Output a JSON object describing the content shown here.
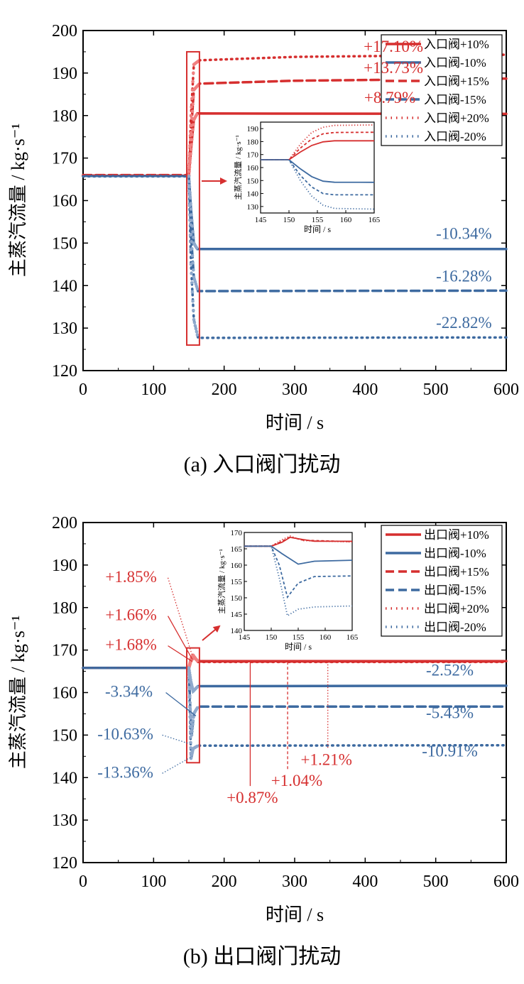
{
  "colors": {
    "red": "#d62f2f",
    "blue": "#3d6aa0",
    "red_light": "#f08080",
    "blue_light": "#8fa9cc"
  },
  "panel_a": {
    "caption": "(a) 入口阀门扰动",
    "ylabel": "主蒸汽流量 / kg·s⁻¹",
    "xlabel": "时间 / s",
    "annotations": [
      {
        "text": "+17.10%",
        "color": "red",
        "x": 440,
        "y": 195
      },
      {
        "text": "+13.73%",
        "color": "red",
        "x": 440,
        "y": 190
      },
      {
        "text": "+8.79%",
        "color": "red",
        "x": 435,
        "y": 183
      },
      {
        "text": "-10.34%",
        "color": "blue",
        "x": 540,
        "y": 151
      },
      {
        "text": "-16.28%",
        "color": "blue",
        "x": 540,
        "y": 141
      },
      {
        "text": "-22.82%",
        "color": "blue",
        "x": 540,
        "y": 130
      }
    ],
    "inset": {
      "ylabel": "主蒸汽流量 / kg·s⁻¹",
      "xlabel": "时间 / s"
    }
  },
  "panel_b": {
    "caption": "(b) 出口阀门扰动",
    "ylabel": "主蒸汽流量 / kg·s⁻¹",
    "xlabel": "时间 / s",
    "annotations": [
      {
        "text": "+1.85%",
        "color": "red",
        "x": 68,
        "y": 186,
        "ax": 155,
        "ay": 168.6
      },
      {
        "text": "+1.66%",
        "color": "red",
        "x": 68,
        "y": 177,
        "ax": 155,
        "ay": 167.8
      },
      {
        "text": "+1.68%",
        "color": "red",
        "x": 68,
        "y": 170,
        "ax": 155,
        "ay": 167.3
      },
      {
        "text": "-2.52%",
        "color": "blue",
        "x": 520,
        "y": 164,
        "ax": null,
        "ay": null
      },
      {
        "text": "-5.43%",
        "color": "blue",
        "x": 520,
        "y": 154,
        "ax": null,
        "ay": null
      },
      {
        "text": "-10.91%",
        "color": "blue",
        "x": 520,
        "y": 145,
        "ax": null,
        "ay": null
      },
      {
        "text": "-3.34%",
        "color": "blue",
        "x": 65,
        "y": 159,
        "ax": 160,
        "ay": 154.5
      },
      {
        "text": "-10.63%",
        "color": "blue",
        "x": 60,
        "y": 149,
        "ax": 150,
        "ay": 148
      },
      {
        "text": "-13.36%",
        "color": "blue",
        "x": 60,
        "y": 140,
        "ax": 155,
        "ay": 145
      },
      {
        "text": "+0.87%",
        "color": "red",
        "x": 240,
        "y": 134,
        "ax": 237,
        "ay": 167.5
      },
      {
        "text": "+1.04%",
        "color": "red",
        "x": 303,
        "y": 138,
        "ax": 290,
        "ay": 167.5
      },
      {
        "text": "+1.21%",
        "color": "red",
        "x": 345,
        "y": 143,
        "ax": 347,
        "ay": 167.5
      }
    ],
    "inset": {
      "ylabel": "主蒸汽流量 / kg·s⁻¹",
      "xlabel": "时间 / s"
    }
  },
  "chart_data": [
    {
      "type": "line",
      "xlabel": "时间 / s",
      "ylabel": "主蒸汽流量 / kg·s⁻¹",
      "xlim": [
        0,
        600
      ],
      "ylim": [
        120,
        200
      ],
      "xticks": [
        0,
        100,
        200,
        300,
        400,
        500,
        600
      ],
      "yticks": [
        120,
        130,
        140,
        150,
        160,
        170,
        180,
        190,
        200
      ],
      "legend_position": "top-right",
      "series": [
        {
          "name": "入口阀+10%",
          "color": "red",
          "style": "solid",
          "points": [
            [
              0,
              165.8
            ],
            [
              150,
              165.8
            ],
            [
              153,
              172
            ],
            [
              157,
              179
            ],
            [
              162,
              180.5
            ],
            [
              600,
              180.4
            ]
          ]
        },
        {
          "name": "入口阀-10%",
          "color": "blue",
          "style": "solid",
          "points": [
            [
              0,
              165.8
            ],
            [
              150,
              165.8
            ],
            [
              153,
              158
            ],
            [
              157,
              150
            ],
            [
              162,
              148.6
            ],
            [
              600,
              148.6
            ]
          ]
        },
        {
          "name": "入口阀+15%",
          "color": "red",
          "style": "dashed",
          "points": [
            [
              0,
              166.0
            ],
            [
              150,
              166.0
            ],
            [
              153,
              176
            ],
            [
              157,
              186
            ],
            [
              165,
              187.5
            ],
            [
              300,
              188.2
            ],
            [
              600,
              188.7
            ]
          ]
        },
        {
          "name": "入口阀-15%",
          "color": "blue",
          "style": "dashed",
          "points": [
            [
              0,
              165.8
            ],
            [
              150,
              165.8
            ],
            [
              153,
              152
            ],
            [
              157,
              142
            ],
            [
              163,
              138.7
            ],
            [
              600,
              138.8
            ]
          ]
        },
        {
          "name": "入口阀+20%",
          "color": "red",
          "style": "dotted",
          "points": [
            [
              0,
              165.9
            ],
            [
              150,
              165.9
            ],
            [
              153,
              180
            ],
            [
              157,
              192
            ],
            [
              165,
              193.0
            ],
            [
              300,
              193.8
            ],
            [
              600,
              194.3
            ]
          ]
        },
        {
          "name": "入口阀-20%",
          "color": "blue",
          "style": "dotted",
          "points": [
            [
              0,
              165.7
            ],
            [
              150,
              165.7
            ],
            [
              153,
              145
            ],
            [
              157,
              132
            ],
            [
              163,
              127.7
            ],
            [
              600,
              127.8
            ]
          ]
        }
      ],
      "inset": {
        "xlim": [
          145,
          165
        ],
        "ylim": [
          125,
          195
        ],
        "xticks": [
          145,
          150,
          155,
          160,
          165
        ],
        "yticks": [
          130,
          140,
          150,
          160,
          170,
          180,
          190
        ],
        "series": [
          {
            "color": "red",
            "style": "solid",
            "points": [
              [
                145,
                166
              ],
              [
                150,
                166
              ],
              [
                152,
                172
              ],
              [
                154,
                177
              ],
              [
                156,
                179.8
              ],
              [
                158,
                180.6
              ],
              [
                165,
                180.6
              ]
            ]
          },
          {
            "color": "blue",
            "style": "solid",
            "points": [
              [
                145,
                166
              ],
              [
                150,
                166
              ],
              [
                152,
                159
              ],
              [
                154,
                153
              ],
              [
                156,
                149.5
              ],
              [
                158,
                148.7
              ],
              [
                165,
                148.6
              ]
            ]
          },
          {
            "color": "red",
            "style": "dashed",
            "points": [
              [
                145,
                166
              ],
              [
                150,
                166
              ],
              [
                152,
                175
              ],
              [
                154,
                182
              ],
              [
                156,
                186
              ],
              [
                158,
                187
              ],
              [
                165,
                187.2
              ]
            ]
          },
          {
            "color": "blue",
            "style": "dashed",
            "points": [
              [
                145,
                166
              ],
              [
                150,
                166
              ],
              [
                152,
                154
              ],
              [
                154,
                145
              ],
              [
                156,
                140
              ],
              [
                158,
                139
              ],
              [
                165,
                139
              ]
            ]
          },
          {
            "color": "red",
            "style": "dotted",
            "points": [
              [
                145,
                166
              ],
              [
                150,
                166
              ],
              [
                152,
                178
              ],
              [
                154,
                187
              ],
              [
                156,
                191
              ],
              [
                158,
                192.5
              ],
              [
                165,
                192.8
              ]
            ]
          },
          {
            "color": "blue",
            "style": "dotted",
            "points": [
              [
                145,
                166
              ],
              [
                150,
                166
              ],
              [
                152,
                150
              ],
              [
                154,
                138
              ],
              [
                156,
                131
              ],
              [
                158,
                128.5
              ],
              [
                165,
                128
              ]
            ]
          }
        ]
      },
      "highlight_box": {
        "x": [
          147,
          165
        ],
        "y": [
          126,
          195
        ]
      }
    },
    {
      "type": "line",
      "xlabel": "时间 / s",
      "ylabel": "主蒸汽流量 / kg·s⁻¹",
      "xlim": [
        0,
        600
      ],
      "ylim": [
        120,
        200
      ],
      "xticks": [
        0,
        100,
        200,
        300,
        400,
        500,
        600
      ],
      "yticks": [
        120,
        130,
        140,
        150,
        160,
        170,
        180,
        190,
        200
      ],
      "legend_position": "top-right",
      "series": [
        {
          "name": "出口阀+10%",
          "color": "red",
          "style": "solid",
          "points": [
            [
              0,
              165.8
            ],
            [
              150,
              165.8
            ],
            [
              153,
              167.5
            ],
            [
              157,
              168.3
            ],
            [
              163,
              167.4
            ],
            [
              600,
              167.4
            ]
          ]
        },
        {
          "name": "出口阀-10%",
          "color": "blue",
          "style": "solid",
          "points": [
            [
              0,
              165.8
            ],
            [
              150,
              165.8
            ],
            [
              153,
              162.5
            ],
            [
              156,
              160.3
            ],
            [
              163,
              161.5
            ],
            [
              600,
              161.6
            ]
          ]
        },
        {
          "name": "出口阀+15%",
          "color": "red",
          "style": "dashed",
          "points": [
            [
              0,
              165.8
            ],
            [
              150,
              165.8
            ],
            [
              153,
              167.8
            ],
            [
              157,
              168.5
            ],
            [
              163,
              167.3
            ],
            [
              600,
              167.3
            ]
          ]
        },
        {
          "name": "出口阀-15%",
          "color": "blue",
          "style": "dashed",
          "points": [
            [
              0,
              165.8
            ],
            [
              150,
              165.8
            ],
            [
              152,
              156
            ],
            [
              154,
              150
            ],
            [
              157,
              155
            ],
            [
              163,
              156.7
            ],
            [
              600,
              156.7
            ]
          ]
        },
        {
          "name": "出口阀+20%",
          "color": "red",
          "style": "dotted",
          "points": [
            [
              0,
              165.8
            ],
            [
              150,
              165.8
            ],
            [
              153,
              168
            ],
            [
              156,
              168.8
            ],
            [
              163,
              167.2
            ],
            [
              600,
              167.2
            ]
          ]
        },
        {
          "name": "出口阀-20%",
          "color": "blue",
          "style": "dotted",
          "points": [
            [
              0,
              165.8
            ],
            [
              150,
              165.8
            ],
            [
              152,
              152
            ],
            [
              153,
              144.5
            ],
            [
              156,
              146.8
            ],
            [
              163,
              147.5
            ],
            [
              600,
              147.6
            ]
          ]
        }
      ],
      "inset": {
        "xlim": [
          145,
          165
        ],
        "ylim": [
          140,
          170
        ],
        "xticks": [
          145,
          150,
          155,
          160,
          165
        ],
        "yticks": [
          140,
          145,
          150,
          155,
          160,
          165,
          170
        ],
        "series": [
          {
            "color": "red",
            "style": "solid",
            "points": [
              [
                145,
                165.8
              ],
              [
                150,
                165.8
              ],
              [
                152,
                167
              ],
              [
                153.5,
                168.5
              ],
              [
                156,
                167.8
              ],
              [
                158,
                167.3
              ],
              [
                165,
                167.3
              ]
            ]
          },
          {
            "color": "blue",
            "style": "solid",
            "points": [
              [
                145,
                165.8
              ],
              [
                150,
                165.8
              ],
              [
                152,
                163.5
              ],
              [
                155,
                160.3
              ],
              [
                158,
                161.2
              ],
              [
                165,
                161.5
              ]
            ]
          },
          {
            "color": "red",
            "style": "dashed",
            "points": [
              [
                145,
                165.8
              ],
              [
                150,
                165.8
              ],
              [
                152,
                167.3
              ],
              [
                153.5,
                168.6
              ],
              [
                156,
                167.6
              ],
              [
                165,
                167.2
              ]
            ]
          },
          {
            "color": "blue",
            "style": "dashed",
            "points": [
              [
                145,
                165.8
              ],
              [
                150,
                165.8
              ],
              [
                151.5,
                160
              ],
              [
                153,
                150.2
              ],
              [
                155,
                154.5
              ],
              [
                158,
                156.5
              ],
              [
                165,
                156.7
              ]
            ]
          },
          {
            "color": "red",
            "style": "dotted",
            "points": [
              [
                145,
                165.8
              ],
              [
                150,
                165.8
              ],
              [
                152,
                167.8
              ],
              [
                153.5,
                168.9
              ],
              [
                156,
                167.5
              ],
              [
                165,
                167.1
              ]
            ]
          },
          {
            "color": "blue",
            "style": "dotted",
            "points": [
              [
                145,
                165.8
              ],
              [
                150,
                165.8
              ],
              [
                151.5,
                156
              ],
              [
                153,
                144.5
              ],
              [
                155,
                146.5
              ],
              [
                158,
                147.2
              ],
              [
                165,
                147.5
              ]
            ]
          }
        ]
      },
      "highlight_box": {
        "x": [
          147,
          165
        ],
        "y": [
          143.5,
          170.5
        ]
      }
    }
  ]
}
